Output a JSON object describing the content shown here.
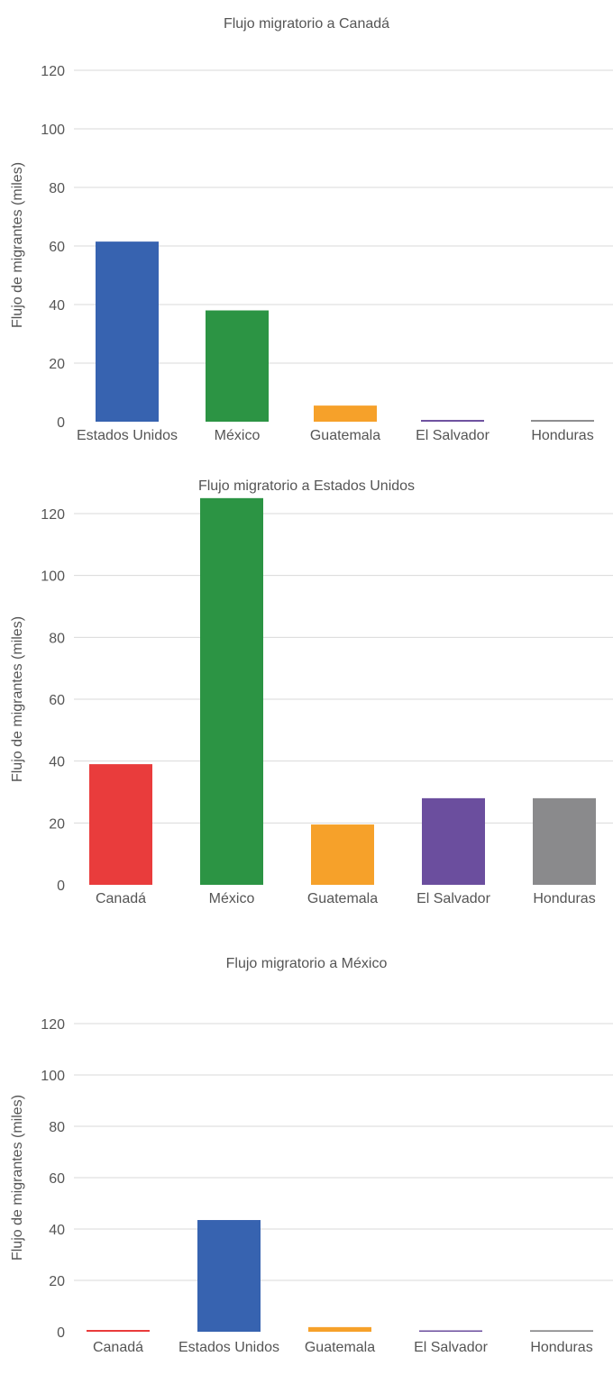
{
  "chart_data": [
    {
      "type": "bar",
      "title": "Flujo migratorio a Canadá",
      "ylabel": "Flujo de migrantes (miles)",
      "xlabel": "",
      "ylim": [
        0,
        120
      ],
      "yticks": [
        "0",
        "20",
        "40",
        "60",
        "80",
        "100",
        "120"
      ],
      "grid": true,
      "categories": [
        "Estados Unidos",
        "México",
        "Guatemala",
        "El Salvador",
        "Honduras"
      ],
      "values": [
        61.5,
        38,
        5.5,
        0.6,
        0.6
      ],
      "colors": [
        "#3763b0",
        "#2c9444",
        "#f6a12a",
        "#6b4e9e",
        "#8a8a8c"
      ]
    },
    {
      "type": "bar",
      "title": "Flujo migratorio a Estados Unidos",
      "ylabel": "Flujo de migrantes (miles)",
      "xlabel": "",
      "ylim": [
        0,
        120
      ],
      "yticks": [
        "0",
        "20",
        "40",
        "60",
        "80",
        "100",
        "120"
      ],
      "grid": true,
      "categories": [
        "Canadá",
        "México",
        "Guatemala",
        "El Salvador",
        "Honduras"
      ],
      "values": [
        39,
        125,
        19.5,
        28,
        28
      ],
      "colors": [
        "#e93c3c",
        "#2c9444",
        "#f6a12a",
        "#6b4e9e",
        "#8a8a8c"
      ]
    },
    {
      "type": "bar",
      "title": "Flujo migratorio a México",
      "ylabel": "Flujo de migrantes (miles)",
      "xlabel": "",
      "ylim": [
        0,
        120
      ],
      "yticks": [
        "0",
        "20",
        "40",
        "60",
        "80",
        "100",
        "120"
      ],
      "grid": true,
      "categories": [
        "Canadá",
        "Estados Unidos",
        "Guatemala",
        "El Salvador",
        "Honduras"
      ],
      "values": [
        0.7,
        43.5,
        1.8,
        0.3,
        0.6
      ],
      "colors": [
        "#e93c3c",
        "#3763b0",
        "#f6a12a",
        "#6b4e9e",
        "#8a8a8c"
      ]
    }
  ]
}
